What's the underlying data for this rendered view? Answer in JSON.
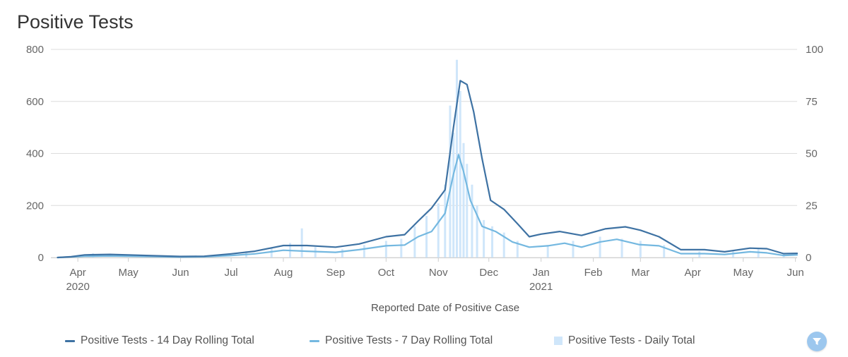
{
  "title": "Positive Tests",
  "filter_icon": "filter-icon",
  "colors": {
    "series14": "#3e72a3",
    "series7": "#74b8e0",
    "daily": "#cfe6fa",
    "grid": "#dcdcdc"
  },
  "chart_data": {
    "type": "line",
    "xlabel": "Reported Date of Positive Case",
    "x_range": [
      "2020-03-16",
      "2021-06-02"
    ],
    "x_ticks": [
      {
        "date": "2020-04-01",
        "label": "Apr",
        "year": "2020"
      },
      {
        "date": "2020-05-01",
        "label": "May",
        "year": ""
      },
      {
        "date": "2020-06-01",
        "label": "Jun",
        "year": ""
      },
      {
        "date": "2020-07-01",
        "label": "Jul",
        "year": ""
      },
      {
        "date": "2020-08-01",
        "label": "Aug",
        "year": ""
      },
      {
        "date": "2020-09-01",
        "label": "Sep",
        "year": ""
      },
      {
        "date": "2020-10-01",
        "label": "Oct",
        "year": ""
      },
      {
        "date": "2020-11-01",
        "label": "Nov",
        "year": ""
      },
      {
        "date": "2020-12-01",
        "label": "Dec",
        "year": ""
      },
      {
        "date": "2021-01-01",
        "label": "Jan",
        "year": "2021"
      },
      {
        "date": "2021-02-01",
        "label": "Feb",
        "year": ""
      },
      {
        "date": "2021-03-01",
        "label": "Mar",
        "year": ""
      },
      {
        "date": "2021-04-01",
        "label": "Apr",
        "year": ""
      },
      {
        "date": "2021-05-01",
        "label": "May",
        "year": ""
      },
      {
        "date": "2021-06-01",
        "label": "Jun",
        "year": ""
      }
    ],
    "y_left": {
      "min": 0,
      "max": 800,
      "ticks": [
        "0",
        "200",
        "400",
        "600",
        "800"
      ]
    },
    "y_right": {
      "min": 0,
      "max": 100,
      "ticks": [
        "0",
        "25",
        "50",
        "75",
        "100"
      ]
    },
    "grid": true,
    "legend_position": "bottom",
    "series": [
      {
        "name": "Positive Tests - 14 Day Rolling Total",
        "kind": "line",
        "axis": "left",
        "color": "#3e72a3",
        "points": [
          [
            "2020-03-20",
            0
          ],
          [
            "2020-03-28",
            3
          ],
          [
            "2020-04-05",
            10
          ],
          [
            "2020-04-20",
            12
          ],
          [
            "2020-05-01",
            10
          ],
          [
            "2020-05-15",
            7
          ],
          [
            "2020-06-01",
            4
          ],
          [
            "2020-06-15",
            5
          ],
          [
            "2020-07-01",
            14
          ],
          [
            "2020-07-15",
            24
          ],
          [
            "2020-08-01",
            46
          ],
          [
            "2020-08-15",
            46
          ],
          [
            "2020-09-01",
            40
          ],
          [
            "2020-09-15",
            52
          ],
          [
            "2020-10-01",
            80
          ],
          [
            "2020-10-12",
            88
          ],
          [
            "2020-10-20",
            140
          ],
          [
            "2020-10-28",
            190
          ],
          [
            "2020-11-05",
            260
          ],
          [
            "2020-11-10",
            500
          ],
          [
            "2020-11-14",
            680
          ],
          [
            "2020-11-18",
            665
          ],
          [
            "2020-11-22",
            560
          ],
          [
            "2020-11-27",
            380
          ],
          [
            "2020-12-02",
            220
          ],
          [
            "2020-12-10",
            185
          ],
          [
            "2020-12-18",
            130
          ],
          [
            "2020-12-25",
            80
          ],
          [
            "2021-01-01",
            90
          ],
          [
            "2021-01-12",
            100
          ],
          [
            "2021-01-25",
            85
          ],
          [
            "2021-02-08",
            110
          ],
          [
            "2021-02-20",
            118
          ],
          [
            "2021-03-01",
            105
          ],
          [
            "2021-03-12",
            80
          ],
          [
            "2021-03-25",
            30
          ],
          [
            "2021-04-08",
            30
          ],
          [
            "2021-04-20",
            22
          ],
          [
            "2021-05-05",
            36
          ],
          [
            "2021-05-15",
            34
          ],
          [
            "2021-05-25",
            15
          ],
          [
            "2021-06-02",
            16
          ]
        ]
      },
      {
        "name": "Positive Tests - 7 Day Rolling Total",
        "kind": "line",
        "axis": "left",
        "color": "#74b8e0",
        "points": [
          [
            "2020-03-20",
            0
          ],
          [
            "2020-04-05",
            5
          ],
          [
            "2020-04-20",
            6
          ],
          [
            "2020-05-15",
            4
          ],
          [
            "2020-06-01",
            2
          ],
          [
            "2020-06-15",
            3
          ],
          [
            "2020-07-01",
            8
          ],
          [
            "2020-07-15",
            14
          ],
          [
            "2020-08-01",
            28
          ],
          [
            "2020-08-15",
            24
          ],
          [
            "2020-09-01",
            20
          ],
          [
            "2020-09-15",
            30
          ],
          [
            "2020-10-01",
            45
          ],
          [
            "2020-10-12",
            48
          ],
          [
            "2020-10-20",
            80
          ],
          [
            "2020-10-28",
            100
          ],
          [
            "2020-11-05",
            170
          ],
          [
            "2020-11-10",
            320
          ],
          [
            "2020-11-13",
            395
          ],
          [
            "2020-11-16",
            330
          ],
          [
            "2020-11-20",
            220
          ],
          [
            "2020-11-27",
            120
          ],
          [
            "2020-12-05",
            100
          ],
          [
            "2020-12-15",
            60
          ],
          [
            "2020-12-25",
            40
          ],
          [
            "2021-01-05",
            45
          ],
          [
            "2021-01-15",
            55
          ],
          [
            "2021-01-25",
            40
          ],
          [
            "2021-02-05",
            60
          ],
          [
            "2021-02-15",
            70
          ],
          [
            "2021-02-28",
            50
          ],
          [
            "2021-03-12",
            45
          ],
          [
            "2021-03-25",
            15
          ],
          [
            "2021-04-08",
            15
          ],
          [
            "2021-04-20",
            12
          ],
          [
            "2021-05-05",
            22
          ],
          [
            "2021-05-15",
            18
          ],
          [
            "2021-05-25",
            8
          ],
          [
            "2021-06-02",
            10
          ]
        ]
      },
      {
        "name": "Positive Tests - Daily Total",
        "kind": "bar",
        "axis": "right",
        "color": "#cfe6fa",
        "points": [
          [
            "2020-04-10",
            2
          ],
          [
            "2020-05-10",
            1
          ],
          [
            "2020-06-10",
            1
          ],
          [
            "2020-07-10",
            3
          ],
          [
            "2020-07-25",
            5
          ],
          [
            "2020-08-05",
            7
          ],
          [
            "2020-08-12",
            14
          ],
          [
            "2020-08-20",
            5
          ],
          [
            "2020-09-05",
            4
          ],
          [
            "2020-09-18",
            6
          ],
          [
            "2020-10-01",
            8
          ],
          [
            "2020-10-10",
            9
          ],
          [
            "2020-10-18",
            15
          ],
          [
            "2020-10-25",
            20
          ],
          [
            "2020-11-01",
            26
          ],
          [
            "2020-11-05",
            35
          ],
          [
            "2020-11-08",
            73
          ],
          [
            "2020-11-10",
            60
          ],
          [
            "2020-11-12",
            95
          ],
          [
            "2020-11-14",
            80
          ],
          [
            "2020-11-16",
            55
          ],
          [
            "2020-11-18",
            45
          ],
          [
            "2020-11-21",
            35
          ],
          [
            "2020-11-24",
            25
          ],
          [
            "2020-11-28",
            18
          ],
          [
            "2020-12-03",
            15
          ],
          [
            "2020-12-10",
            12
          ],
          [
            "2020-12-18",
            8
          ],
          [
            "2021-01-05",
            6
          ],
          [
            "2021-01-20",
            8
          ],
          [
            "2021-02-05",
            10
          ],
          [
            "2021-02-18",
            9
          ],
          [
            "2021-03-01",
            8
          ],
          [
            "2021-03-15",
            6
          ],
          [
            "2021-04-05",
            3
          ],
          [
            "2021-04-25",
            3
          ],
          [
            "2021-05-10",
            4
          ],
          [
            "2021-05-25",
            2
          ]
        ]
      }
    ]
  }
}
